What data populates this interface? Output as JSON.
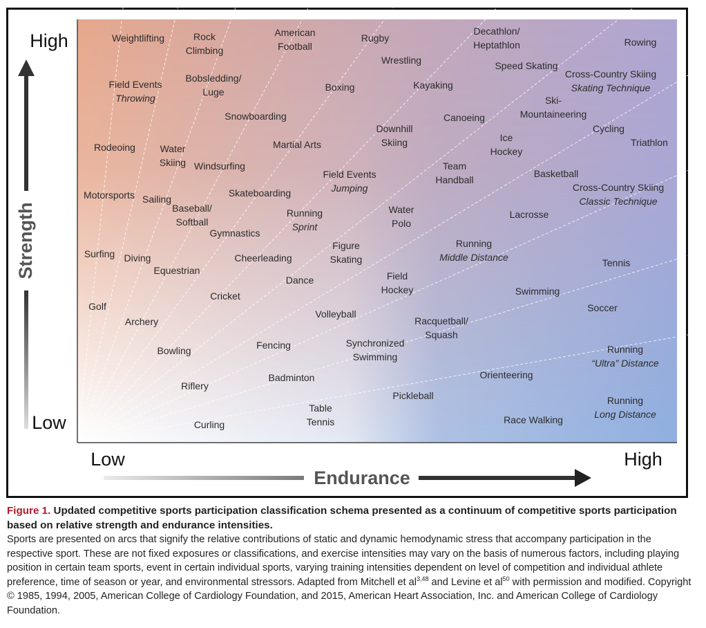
{
  "axes": {
    "y_high": "High",
    "y_low": "Low",
    "y_title": "Strength",
    "x_low": "Low",
    "x_high": "High",
    "x_title": "Endurance"
  },
  "sports": [
    {
      "lines": [
        "Weightlifting"
      ]
    },
    {
      "lines": [
        "Rock",
        "Climbing"
      ]
    },
    {
      "lines": [
        "American",
        "Football"
      ]
    },
    {
      "lines": [
        "Rugby"
      ]
    },
    {
      "lines": [
        "Decathlon/",
        "Heptathlon"
      ]
    },
    {
      "lines": [
        "Rowing"
      ]
    },
    {
      "lines": [
        "Wrestling"
      ]
    },
    {
      "lines": [
        "Speed Skating"
      ]
    },
    {
      "lines": [
        "Field Events"
      ],
      "variant": "Throwing"
    },
    {
      "lines": [
        "Bobsledding/",
        "Luge"
      ]
    },
    {
      "lines": [
        "Boxing"
      ]
    },
    {
      "lines": [
        "Kayaking"
      ]
    },
    {
      "lines": [
        "Cross-Country Skiing"
      ],
      "variant": "Skating Technique"
    },
    {
      "lines": [
        "Ski-",
        "Mountaineering"
      ]
    },
    {
      "lines": [
        "Snowboarding"
      ]
    },
    {
      "lines": [
        "Canoeing"
      ]
    },
    {
      "lines": [
        "Downhill",
        "Skiing"
      ]
    },
    {
      "lines": [
        "Cycling"
      ]
    },
    {
      "lines": [
        "Ice",
        "Hockey"
      ]
    },
    {
      "lines": [
        "Triathlon"
      ]
    },
    {
      "lines": [
        "Rodeoing"
      ]
    },
    {
      "lines": [
        "Water",
        "Skiing"
      ]
    },
    {
      "lines": [
        "Martial Arts"
      ]
    },
    {
      "lines": [
        "Windsurfing"
      ]
    },
    {
      "lines": [
        "Team",
        "Handball"
      ]
    },
    {
      "lines": [
        "Field Events"
      ],
      "variant": "Jumping"
    },
    {
      "lines": [
        "Basketball"
      ]
    },
    {
      "lines": [
        "Cross-Country Skiing"
      ],
      "variant": "Classic Technique"
    },
    {
      "lines": [
        "Skateboarding"
      ]
    },
    {
      "lines": [
        "Motorsports"
      ]
    },
    {
      "lines": [
        "Sailing"
      ]
    },
    {
      "lines": [
        "Baseball/",
        "Softball"
      ]
    },
    {
      "lines": [
        "Running"
      ],
      "variant": "Sprint"
    },
    {
      "lines": [
        "Water",
        "Polo"
      ]
    },
    {
      "lines": [
        "Lacrosse"
      ]
    },
    {
      "lines": [
        "Gymnastics"
      ]
    },
    {
      "lines": [
        "Running"
      ],
      "variant": "Middle Distance"
    },
    {
      "lines": [
        "Figure",
        "Skating"
      ]
    },
    {
      "lines": [
        "Surfing"
      ]
    },
    {
      "lines": [
        "Diving"
      ]
    },
    {
      "lines": [
        "Cheerleading"
      ]
    },
    {
      "lines": [
        "Tennis"
      ]
    },
    {
      "lines": [
        "Equestrian"
      ]
    },
    {
      "lines": [
        "Field",
        "Hockey"
      ]
    },
    {
      "lines": [
        "Dance"
      ]
    },
    {
      "lines": [
        "Swimming"
      ]
    },
    {
      "lines": [
        "Cricket"
      ]
    },
    {
      "lines": [
        "Golf"
      ]
    },
    {
      "lines": [
        "Soccer"
      ]
    },
    {
      "lines": [
        "Volleyball"
      ]
    },
    {
      "lines": [
        "Racquetball/",
        "Squash"
      ]
    },
    {
      "lines": [
        "Archery"
      ]
    },
    {
      "lines": [
        "Fencing"
      ]
    },
    {
      "lines": [
        "Synchronized",
        "Swimming"
      ]
    },
    {
      "lines": [
        "Running"
      ],
      "variant": "“Ultra” Distance"
    },
    {
      "lines": [
        "Bowling"
      ]
    },
    {
      "lines": [
        "Orienteering"
      ]
    },
    {
      "lines": [
        "Badminton"
      ]
    },
    {
      "lines": [
        "Riflery"
      ]
    },
    {
      "lines": [
        "Pickleball"
      ]
    },
    {
      "lines": [
        "Running"
      ],
      "variant": "Long Distance"
    },
    {
      "lines": [
        "Table",
        "Tennis"
      ]
    },
    {
      "lines": [
        "Race Walking"
      ]
    },
    {
      "lines": [
        "Curling"
      ]
    }
  ],
  "caption": {
    "label": "Figure 1.",
    "title": "Updated competitive sports participation classification schema presented as a continuum of competitive sports participation based on relative strength and endurance intensities.",
    "body": [
      "Sports are presented on arcs that signify the relative contributions of static and dynamic hemodynamic stress that accompany participation in the respective sport. These are not fixed exposures or classifications, and exercise intensities may vary on the basis of numerous factors, including playing position in certain team sports, event in certain individual sports, varying training intensities dependent on level of competition and individual athlete preference, time of season or year, and environmental stressors. Adapted from Mitchell et al",
      "3,48",
      " and Levine et al",
      "50",
      " with permission and modified. Copyright © 1985, 1994, 2005, American College of Cardiology Foundation, and 2015, American Heart Association, Inc. and American College of Cardiology Foundation."
    ]
  }
}
